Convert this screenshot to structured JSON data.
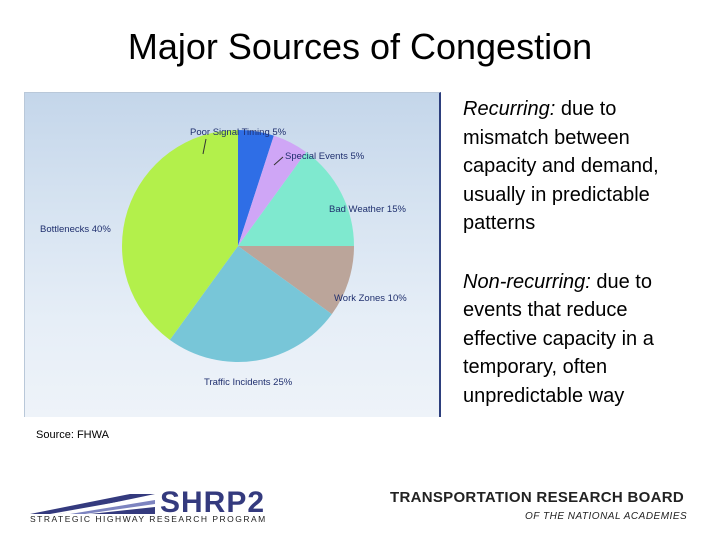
{
  "slide": {
    "title": "Major Sources of Congestion",
    "source": "Source: FHWA"
  },
  "bullets": [
    {
      "term": "Recurring:",
      "text": " due to mismatch between capacity and demand, usually in predictable patterns"
    },
    {
      "term": "Non-recurring:",
      "text": " due to events that reduce effective capacity in a temporary, often unpredictable way"
    }
  ],
  "footer": {
    "shrp_logo_text": "SHRP2",
    "shrp_subtitle": "STRATEGIC HIGHWAY RESEARCH PROGRAM",
    "trb_name": "TRANSPORTATION RESEARCH BOARD",
    "trb_subtitle": "OF THE NATIONAL ACADEMIES"
  },
  "chart_data": {
    "type": "pie",
    "title": "",
    "slices": [
      {
        "label": "Poor Signal Timing 5%",
        "value": 5,
        "color": "#2f6ee6"
      },
      {
        "label": "Special Events 5%",
        "value": 5,
        "color": "#cfa6f6"
      },
      {
        "label": "Bad Weather 15%",
        "value": 15,
        "color": "#7fe9cf"
      },
      {
        "label": "Work Zones 10%",
        "value": 10,
        "color": "#bba59a"
      },
      {
        "label": "Traffic Incidents 25%",
        "value": 25,
        "color": "#78c6d8"
      },
      {
        "label": "Bottlenecks 40%",
        "value": 40,
        "color": "#b3f04b"
      }
    ]
  }
}
